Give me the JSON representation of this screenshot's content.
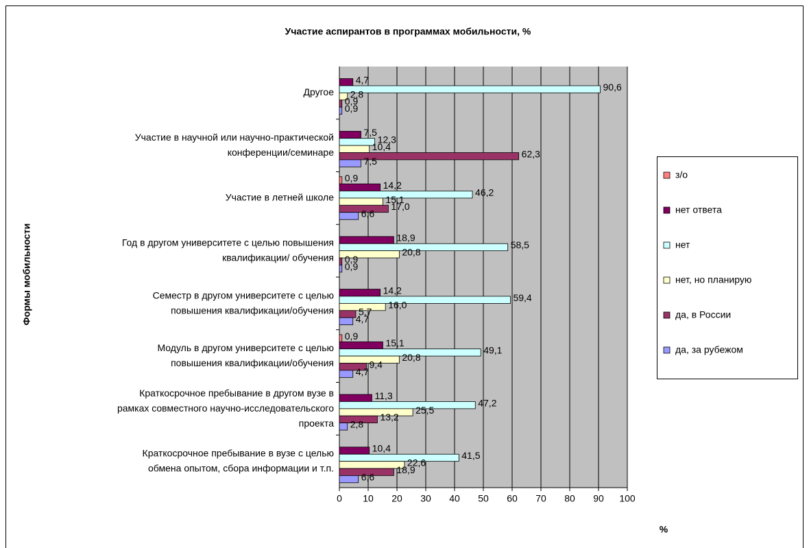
{
  "chart_data": {
    "type": "barh",
    "title": "Участие аспирантов в программах мобильности, %",
    "y_label": "Формы мобильности",
    "x_label": "%",
    "categories": [
      "Другое",
      "Участие в научной или научно-практической\nконференции/семинаре",
      "Участие в летней школе",
      "Год в другом университете с целью повышения\nквалификации/ обучения",
      "Семестр в другом университете с целью\nповышения квалификации/обучения",
      "Модуль в другом университете с целью\nповышения квалификации/обучения",
      "Краткосрочное пребывание в другом вузе в\nрамках совместного научно-исследовательского\nпроекта",
      "Краткосрочное пребывание в вузе с целью\nобмена опытом, сбора информации и т.п."
    ],
    "series": [
      {
        "name": "з/о",
        "color": "#ff8080",
        "values": [
          null,
          null,
          0.9,
          null,
          null,
          0.9,
          null,
          null
        ],
        "value_labels": [
          null,
          null,
          "0,9",
          null,
          null,
          "0,9",
          null,
          null
        ]
      },
      {
        "name": "нет ответа",
        "color": "#800060",
        "values": [
          4.7,
          7.5,
          14.2,
          18.9,
          14.2,
          15.1,
          11.3,
          10.4
        ],
        "value_labels": [
          "4,7",
          "7,5",
          "14,2",
          "18,9",
          "14,2",
          "15,1",
          "11,3",
          "10,4"
        ]
      },
      {
        "name": "нет",
        "color": "#ccffff",
        "values": [
          90.6,
          12.3,
          46.2,
          58.5,
          59.4,
          49.1,
          47.2,
          41.5
        ],
        "value_labels": [
          "90,6",
          "12,3",
          "46,2",
          "58,5",
          "59,4",
          "49,1",
          "47,2",
          "41,5"
        ]
      },
      {
        "name": "нет, но планирую",
        "color": "#ffffcc",
        "values": [
          2.8,
          10.4,
          15.1,
          20.8,
          16.0,
          20.8,
          25.5,
          22.6
        ],
        "value_labels": [
          "2,8",
          "10,4",
          "15,1",
          "20,8",
          "16,0",
          "20,8",
          "25,5",
          "22,6"
        ]
      },
      {
        "name": "да, в России",
        "color": "#993366",
        "values": [
          0.9,
          62.3,
          17.0,
          0.9,
          5.7,
          9.4,
          13.2,
          18.9
        ],
        "value_labels": [
          "0,9",
          "62,3",
          "17,0",
          "0,9",
          "5,7",
          "9,4",
          "13,2",
          "18,9"
        ]
      },
      {
        "name": "да, за рубежом",
        "color": "#9999ff",
        "values": [
          0.9,
          7.5,
          6.6,
          0.9,
          4.7,
          4.7,
          2.8,
          6.6
        ],
        "value_labels": [
          "0,9",
          "7,5",
          "6,6",
          "0,9",
          "4,7",
          "4,7",
          "2,8",
          "6,6"
        ]
      }
    ],
    "xlim": [
      0,
      100
    ],
    "xticks": [
      0,
      10,
      20,
      30,
      40,
      50,
      60,
      70,
      80,
      90,
      100
    ],
    "grid": true,
    "plot_background": "#c0c0c0",
    "legend": "right"
  }
}
